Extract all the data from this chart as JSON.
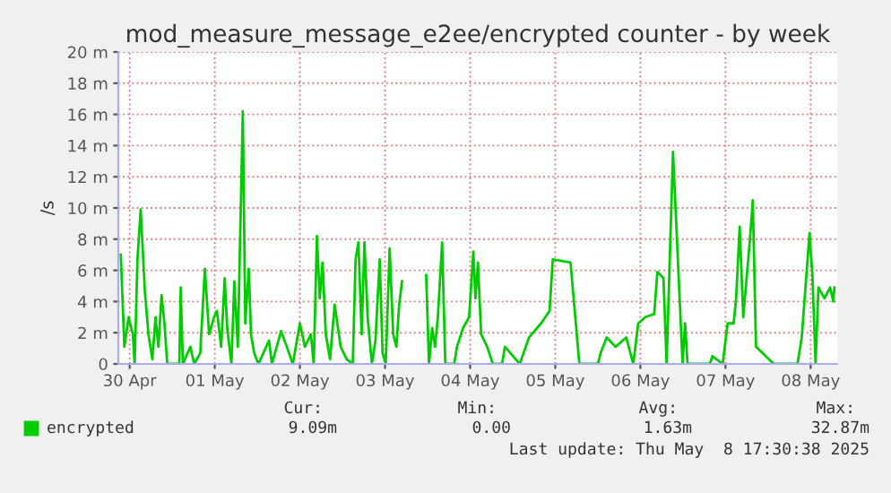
{
  "chart_data": {
    "type": "line",
    "title": "mod_measure_message_e2ee/encrypted counter - by week",
    "ylabel": "/s",
    "x": [
      "2025-04-30T09:30",
      "2025-04-30T10:30",
      "2025-04-30T11:42",
      "2025-04-30T12:54",
      "2025-04-30T13:24",
      "2025-04-30T14:12",
      "2025-04-30T15:06",
      "2025-04-30T16:18",
      "2025-04-30T17:18",
      "2025-04-30T18:24",
      "2025-04-30T19:18",
      "2025-04-30T20:06",
      "2025-04-30T21:00",
      "2025-04-30T21:48",
      "2025-04-30T22:36",
      "2025-05-01T02:00",
      "2025-05-01T02:24",
      "2025-05-01T03:00",
      "2025-05-01T05:06",
      "2025-05-01T06:12",
      "2025-05-01T07:54",
      "2025-05-01T09:12",
      "2025-05-01T10:24",
      "2025-05-01T11:48",
      "2025-05-01T12:36",
      "2025-05-01T13:48",
      "2025-05-01T14:48",
      "2025-05-01T15:30",
      "2025-05-01T16:42",
      "2025-05-01T17:30",
      "2025-05-01T18:30",
      "2025-05-01T19:54",
      "2025-05-01T20:36",
      "2025-05-01T21:36",
      "2025-05-01T22:12",
      "2025-05-01T23:06",
      "2025-05-02T00:18",
      "2025-05-02T03:18",
      "2025-05-02T04:06",
      "2025-05-02T06:42",
      "2025-05-02T08:18",
      "2025-05-02T10:00",
      "2025-05-02T12:00",
      "2025-05-02T13:24",
      "2025-05-02T15:06",
      "2025-05-02T15:54",
      "2025-05-02T16:48",
      "2025-05-02T17:36",
      "2025-05-02T18:24",
      "2025-05-02T19:18",
      "2025-05-02T20:30",
      "2025-05-02T21:48",
      "2025-05-02T23:30",
      "2025-05-03T01:12",
      "2025-05-03T02:54",
      "2025-05-03T03:42",
      "2025-05-03T04:30",
      "2025-05-03T05:24",
      "2025-05-03T06:12",
      "2025-05-03T07:06",
      "2025-05-03T08:18",
      "2025-05-03T09:18",
      "2025-05-03T10:30",
      "2025-05-03T11:18",
      "2025-05-03T12:12",
      "2025-05-03T13:18",
      "2025-05-03T14:18",
      "2025-05-03T15:12",
      "2025-05-03T16:00",
      "2025-05-03T16:48",
      "2025-05-03T18:00",
      "2025-05-03T22:00",
      "2025-05-03T23:36",
      "2025-05-04T00:24",
      "2025-05-04T01:18",
      "2025-05-04T02:06",
      "2025-05-04T02:54",
      "2025-05-04T04:06",
      "2025-05-04T05:00",
      "2025-05-04T07:30",
      "2025-05-04T08:18",
      "2025-05-04T10:00",
      "2025-05-04T11:42",
      "2025-05-04T12:54",
      "2025-05-04T13:30",
      "2025-05-04T14:12",
      "2025-05-04T15:06",
      "2025-05-04T16:48",
      "2025-05-04T18:24",
      "2025-05-04T21:00",
      "2025-05-04T21:48",
      "2025-05-05T02:00",
      "2025-05-05T04:36",
      "2025-05-05T08:00",
      "2025-05-05T10:24",
      "2025-05-05T11:18",
      "2025-05-05T16:18",
      "2025-05-05T18:48",
      "2025-05-05T20:36",
      "2025-05-06T00:00",
      "2025-05-06T00:48",
      "2025-05-06T02:30",
      "2025-05-06T05:00",
      "2025-05-06T08:00",
      "2025-05-06T10:00",
      "2025-05-06T11:24",
      "2025-05-06T13:24",
      "2025-05-06T15:54",
      "2025-05-06T16:48",
      "2025-05-06T18:30",
      "2025-05-06T19:24",
      "2025-05-06T21:12",
      "2025-05-06T23:54",
      "2025-05-07T00:36",
      "2025-05-07T01:18",
      "2025-05-07T07:36",
      "2025-05-07T08:18",
      "2025-05-07T11:12",
      "2025-05-07T12:36",
      "2025-05-07T14:18",
      "2025-05-07T15:00",
      "2025-05-07T16:00",
      "2025-05-07T17:00",
      "2025-05-07T18:54",
      "2025-05-07T19:42",
      "2025-05-07T20:36",
      "2025-05-08T01:36",
      "2025-05-08T08:18",
      "2025-05-08T09:30",
      "2025-05-08T11:42",
      "2025-05-08T12:30",
      "2025-05-08T13:24",
      "2025-05-08T14:12",
      "2025-05-08T15:54",
      "2025-05-08T17:30",
      "2025-05-08T18:24",
      "2025-05-08T18:42"
    ],
    "series": [
      {
        "name": "encrypted",
        "color": "#00cc00",
        "values": [
          7.0,
          1.1,
          3.0,
          1.9,
          0,
          6.7,
          9.9,
          4.6,
          1.9,
          0.3,
          3.0,
          1.1,
          4.4,
          2.6,
          0,
          0,
          4.9,
          0,
          1.1,
          0,
          0.7,
          6.1,
          1.9,
          3.0,
          3.4,
          1.1,
          5.5,
          2.3,
          0,
          5.3,
          1.1,
          16.2,
          2.6,
          6.1,
          1.9,
          0.7,
          0,
          1.5,
          0,
          2.1,
          1.1,
          0,
          2.6,
          1.1,
          1.9,
          0,
          8.2,
          4.2,
          6.5,
          1.9,
          0.3,
          3.8,
          1.1,
          0.3,
          0,
          6.7,
          7.8,
          1.9,
          7.8,
          3.0,
          0,
          1.5,
          6.7,
          0.7,
          0,
          7.4,
          1.9,
          1.1,
          3.8,
          5.3,
          null,
          null,
          5.7,
          0,
          2.3,
          1.1,
          3.0,
          7.8,
          0,
          0,
          1.1,
          2.3,
          3.0,
          7.2,
          4.2,
          6.5,
          1.9,
          1.1,
          0,
          0,
          1.1,
          0,
          1.7,
          2.6,
          3.4,
          6.7,
          6.5,
          0,
          0,
          0,
          0.7,
          1.7,
          1.1,
          1.7,
          0,
          2.6,
          3.0,
          3.2,
          5.9,
          5.5,
          0,
          13.6,
          0,
          2.6,
          0,
          0,
          0.5,
          0,
          2.6,
          2.6,
          4.2,
          8.8,
          3.0,
          8.0,
          10.5,
          1.1,
          0,
          0,
          1.7,
          8.4,
          5.7,
          0,
          4.9,
          4.2,
          4.9,
          4.0,
          4.9
        ]
      }
    ],
    "xlim": [
      "2025-04-30T08:48",
      "2025-05-08T19:30"
    ],
    "xticks": [
      {
        "value": "2025-04-30T12:00",
        "label": "30 Apr"
      },
      {
        "value": "2025-05-01T12:00",
        "label": "01 May"
      },
      {
        "value": "2025-05-02T12:00",
        "label": "02 May"
      },
      {
        "value": "2025-05-03T12:00",
        "label": "03 May"
      },
      {
        "value": "2025-05-04T12:00",
        "label": "04 May"
      },
      {
        "value": "2025-05-05T12:00",
        "label": "05 May"
      },
      {
        "value": "2025-05-06T12:00",
        "label": "06 May"
      },
      {
        "value": "2025-05-07T12:00",
        "label": "07 May"
      },
      {
        "value": "2025-05-08T12:00",
        "label": "08 May"
      }
    ],
    "ylim": [
      0,
      20
    ],
    "yticks": [
      0,
      {
        "value": 2,
        "label": "2 m"
      },
      {
        "value": 4,
        "label": "4 m"
      },
      {
        "value": 6,
        "label": "6 m"
      },
      {
        "value": 8,
        "label": "8 m"
      },
      {
        "value": 10,
        "label": "10 m"
      },
      {
        "value": 12,
        "label": "12 m"
      },
      {
        "value": 14,
        "label": "14 m"
      },
      {
        "value": 16,
        "label": "16 m"
      },
      {
        "value": 18,
        "label": "18 m"
      },
      {
        "value": 20,
        "label": "20 m"
      }
    ],
    "grid": true,
    "legend": "bottom left",
    "annotations": [
      "Cur:",
      "Min:",
      "Avg:",
      "Max:",
      "9.09m",
      "0.00",
      "1.63m",
      "32.87m",
      "Last update: Thu May  8 17:30:38 2025"
    ]
  }
}
